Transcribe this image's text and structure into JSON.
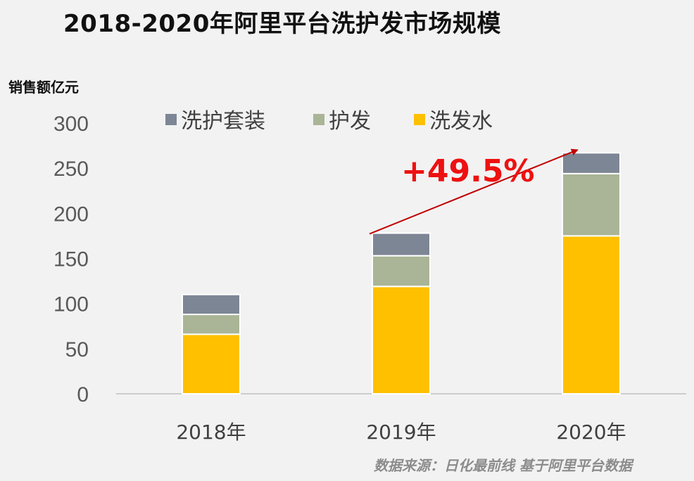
{
  "title": "2018-2020年阿里平台洗护发市场规模",
  "source_note": "数据来源：日化最前线 基于阿里平台数据",
  "growth_label": "+49.5%",
  "chart_data": {
    "type": "bar",
    "stacked": true,
    "title": "2018-2020年阿里平台洗护发市场规模",
    "ylabel": "销售额亿元",
    "xlabel": "",
    "ylim": [
      0,
      300
    ],
    "yticks": [
      0,
      50,
      100,
      150,
      200,
      250,
      300
    ],
    "categories": [
      "2018年",
      "2019年",
      "2020年"
    ],
    "series": [
      {
        "name": "洗发水",
        "color": "#ffc000",
        "values": [
          66,
          119,
          175
        ]
      },
      {
        "name": "护发",
        "color": "#a9b596",
        "values": [
          22,
          34,
          69
        ]
      },
      {
        "name": "洗护套装",
        "color": "#7d8694",
        "values": [
          22,
          25,
          23
        ]
      }
    ],
    "legend_order": [
      "洗护套装",
      "护发",
      "洗发水"
    ],
    "legend_position": "top",
    "grid": false,
    "annotations": [
      {
        "text": "+49.5%",
        "from_category": "2019年",
        "to_category": "2020年",
        "arrow": true,
        "color": "#c00000"
      }
    ]
  }
}
